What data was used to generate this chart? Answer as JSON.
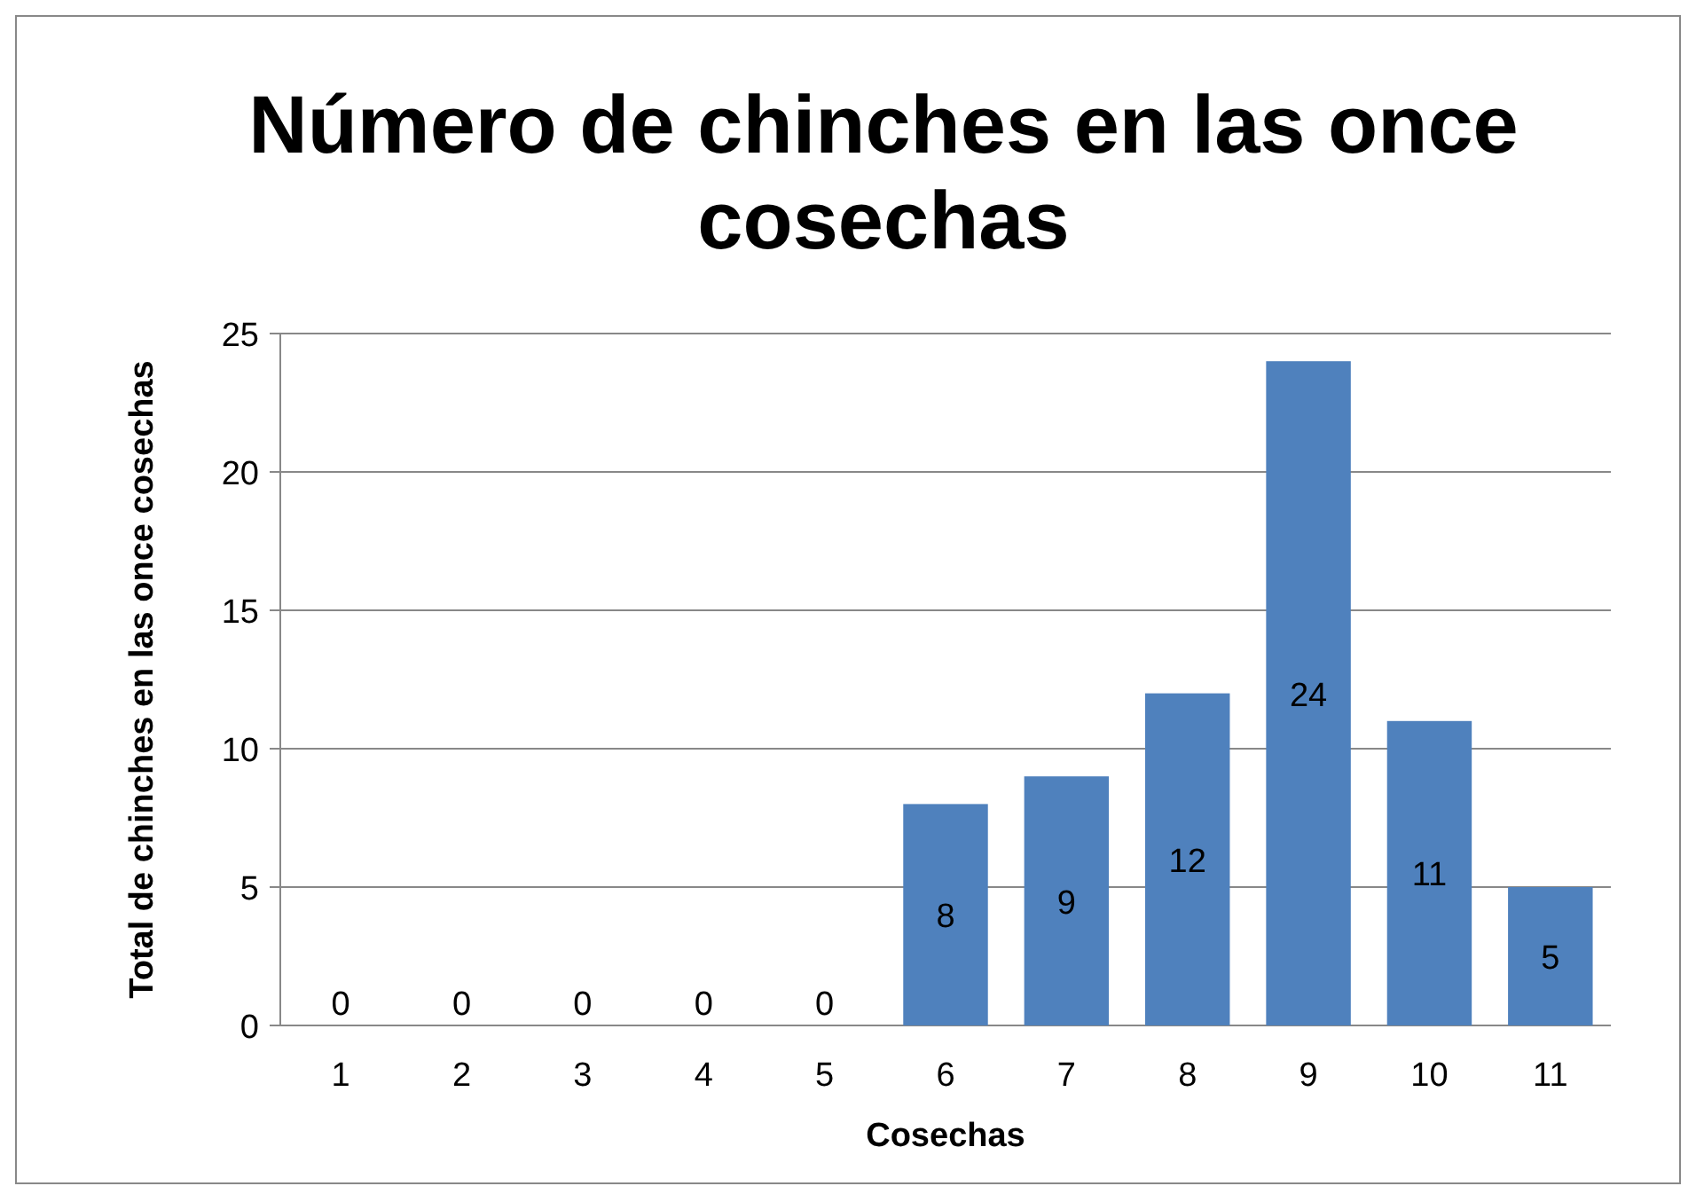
{
  "chart_data": {
    "type": "bar",
    "title": "Número de chinches en las once cosechas",
    "xlabel": "Cosechas",
    "ylabel": "Total de chinches en las once cosechas",
    "categories": [
      "1",
      "2",
      "3",
      "4",
      "5",
      "6",
      "7",
      "8",
      "9",
      "10",
      "11"
    ],
    "values": [
      0,
      0,
      0,
      0,
      0,
      8,
      9,
      12,
      24,
      11,
      5
    ],
    "color": "#4f81bd",
    "ylim": [
      0,
      25
    ],
    "yticks": [
      0,
      5,
      10,
      15,
      20,
      25
    ],
    "grid": true,
    "data_labels": true
  }
}
